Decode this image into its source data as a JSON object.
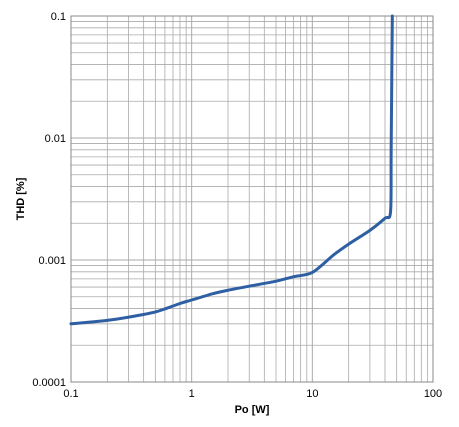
{
  "chart_data": {
    "type": "line",
    "xlabel": "Po [W]",
    "ylabel": "THD [%]",
    "x_scale": "log",
    "y_scale": "log",
    "xlim": [
      0.1,
      100
    ],
    "ylim": [
      0.0001,
      0.1
    ],
    "x_ticks": [
      "0.1",
      "1",
      "10",
      "100"
    ],
    "y_ticks": [
      "0.1",
      "0.01",
      "0.001",
      "0.0001"
    ],
    "grid": true,
    "colors": {
      "line": "#2e5fa3",
      "grid": "#aaaaaa",
      "frame": "#888888"
    },
    "series": [
      {
        "x": [
          0.1,
          0.2,
          0.3,
          0.5,
          0.8,
          1.0,
          1.5,
          2.0,
          3.0,
          5.0,
          7.0,
          10.0,
          15.0,
          20.0,
          30.0,
          40.0,
          44.5,
          45.0,
          46.0
        ],
        "y": [
          0.0003,
          0.00032,
          0.00034,
          0.000375,
          0.00044,
          0.00047,
          0.00053,
          0.000565,
          0.00061,
          0.00067,
          0.00073,
          0.00079,
          0.0011,
          0.00135,
          0.00175,
          0.0022,
          0.0025,
          0.008,
          0.1
        ]
      }
    ]
  }
}
